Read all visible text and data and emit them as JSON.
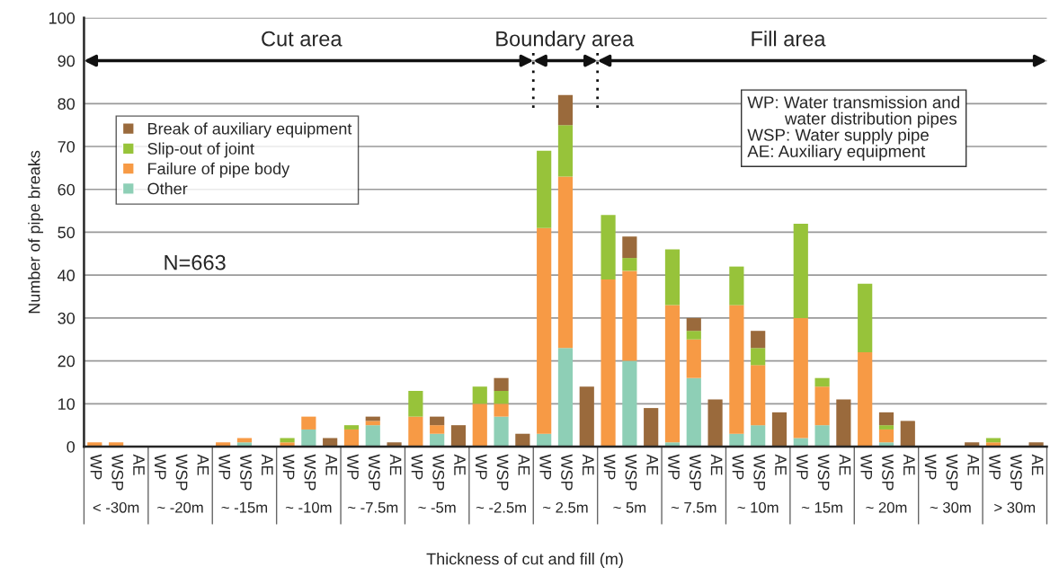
{
  "chart_data": {
    "type": "bar",
    "stacked": true,
    "xlabel": "Thickness of cut and fill (m)",
    "ylabel": "Number of pipe breaks",
    "categories": [
      "WP",
      "WSP",
      "AE",
      "WP",
      "WSP",
      "AE",
      "WP",
      "WSP",
      "AE",
      "WP",
      "WSP",
      "AE",
      "WP",
      "WSP",
      "AE",
      "WP",
      "WSP",
      "AE",
      "WP",
      "WSP",
      "AE",
      "WP",
      "WSP",
      "AE",
      "WP",
      "WSP",
      "AE",
      "WP",
      "WSP",
      "AE",
      "WP",
      "WSP",
      "AE",
      "WP",
      "WSP",
      "AE",
      "WP",
      "WSP",
      "AE",
      "WP",
      "WSP",
      "AE",
      "WP",
      "WSP",
      "AE"
    ],
    "series": [
      {
        "name": "Other",
        "color": "#8ecfb6",
        "values": [
          0,
          0,
          0,
          0,
          0,
          0,
          0,
          1,
          0,
          0,
          4,
          0,
          0,
          5,
          0,
          0,
          3,
          0,
          0,
          7,
          0,
          3,
          23,
          0,
          0,
          20,
          0,
          1,
          16,
          0,
          3,
          5,
          0,
          2,
          5,
          0,
          0,
          1,
          0,
          0,
          0,
          0,
          0,
          0,
          0
        ]
      },
      {
        "name": "Failure of pipe body",
        "color": "#f79a45",
        "values": [
          1,
          1,
          0,
          0,
          0,
          0,
          1,
          1,
          0,
          1,
          3,
          0,
          4,
          1,
          0,
          7,
          2,
          0,
          10,
          3,
          0,
          48,
          40,
          0,
          39,
          21,
          0,
          32,
          9,
          0,
          30,
          14,
          0,
          28,
          9,
          0,
          22,
          3,
          0,
          0,
          0,
          0,
          1,
          0,
          0
        ]
      },
      {
        "name": "Slip-out of joint",
        "color": "#97c33a",
        "values": [
          0,
          0,
          0,
          0,
          0,
          0,
          0,
          0,
          0,
          1,
          0,
          0,
          1,
          0,
          0,
          6,
          0,
          0,
          4,
          3,
          0,
          18,
          12,
          0,
          15,
          3,
          0,
          13,
          2,
          0,
          9,
          4,
          0,
          22,
          2,
          0,
          16,
          1,
          0,
          0,
          0,
          0,
          1,
          0,
          0
        ]
      },
      {
        "name": "Break of auxiliary equipment",
        "color": "#9a6a3c",
        "values": [
          0,
          0,
          0,
          0,
          0,
          0,
          0,
          0,
          0,
          0,
          0,
          2,
          0,
          1,
          1,
          0,
          2,
          5,
          0,
          3,
          3,
          0,
          7,
          14,
          0,
          5,
          9,
          0,
          3,
          11,
          0,
          4,
          8,
          0,
          0,
          11,
          0,
          3,
          6,
          0,
          0,
          1,
          0,
          0,
          1
        ]
      }
    ],
    "ylim": [
      0,
      100
    ],
    "yticks": [
      0,
      10,
      20,
      30,
      40,
      50,
      60,
      70,
      80,
      90,
      100
    ],
    "grid": "y",
    "legend": "top left",
    "annotations": [
      "< -30m",
      "~ -20m",
      "~ -15m",
      "~ -10m",
      "~ -7.5m",
      "~ -5m",
      "~ -2.5m",
      "~ 2.5m",
      "~ 5m",
      "~ 7.5m",
      "~ 10m",
      "~ 15m",
      "~ 20m",
      "~ 30m",
      "> 30m",
      "Cut area",
      "Boundary area",
      "Fill area",
      "N=663",
      "WP: Water transmission and\n        water distribution pipes\nWSP: Water supply pipe\nAE: Auxiliary equipment"
    ]
  }
}
